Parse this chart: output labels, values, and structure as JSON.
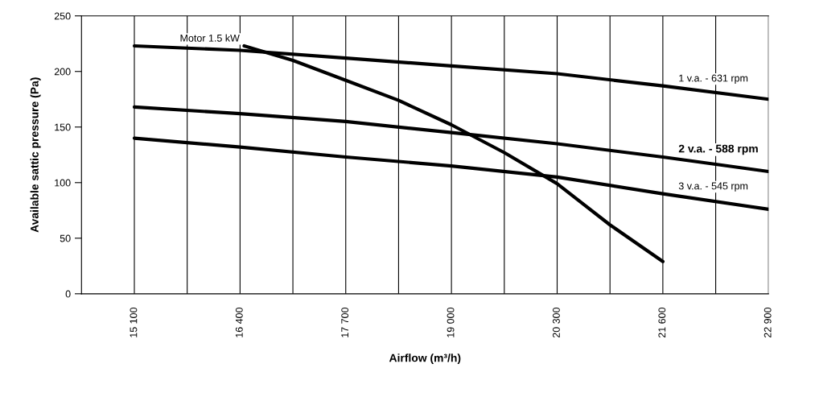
{
  "chart_data": {
    "type": "line",
    "xlabel": "Airflow (m³/h)",
    "ylabel": "Available sattic pressure (Pa)",
    "xlim": [
      14450,
      22900
    ],
    "ylim": [
      0,
      250
    ],
    "xticks": [
      15100,
      {
        "value": 15750,
        "label": null
      },
      16400,
      {
        "value": 17050,
        "label": null
      },
      17700,
      {
        "value": 18350,
        "label": null
      },
      19000,
      {
        "value": 19650,
        "label": null
      },
      20300,
      {
        "value": 20950,
        "label": null
      },
      21600,
      {
        "value": 22250,
        "label": null
      },
      22900
    ],
    "yticks": [
      0,
      50,
      100,
      150,
      200,
      250
    ],
    "grid": "x",
    "legend": false,
    "series": [
      {
        "name": "1 v.a. - 631 rpm",
        "color": "#000000",
        "x": [
          15100,
          16400,
          17700,
          19000,
          20300,
          21600,
          22900
        ],
        "values": [
          223,
          219,
          212,
          205,
          198,
          187,
          175
        ]
      },
      {
        "name": "2 v.a. - 588 rpm",
        "color": "#000000",
        "x": [
          15100,
          16400,
          17700,
          19000,
          20300,
          21600,
          22900
        ],
        "values": [
          168,
          162,
          155,
          145,
          135,
          123,
          110
        ]
      },
      {
        "name": "3 v.a. - 545 rpm",
        "color": "#000000",
        "x": [
          15100,
          16400,
          17700,
          19000,
          20300,
          21600,
          22900
        ],
        "values": [
          140,
          132,
          123,
          115,
          105,
          90,
          76
        ]
      },
      {
        "name": "Motor 1.5 kW",
        "color": "#000000",
        "x": [
          16450,
          17050,
          17700,
          18350,
          19000,
          19650,
          20300,
          20950,
          21600
        ],
        "values": [
          223,
          210,
          192,
          174,
          152,
          127,
          99,
          62,
          29
        ]
      }
    ]
  }
}
